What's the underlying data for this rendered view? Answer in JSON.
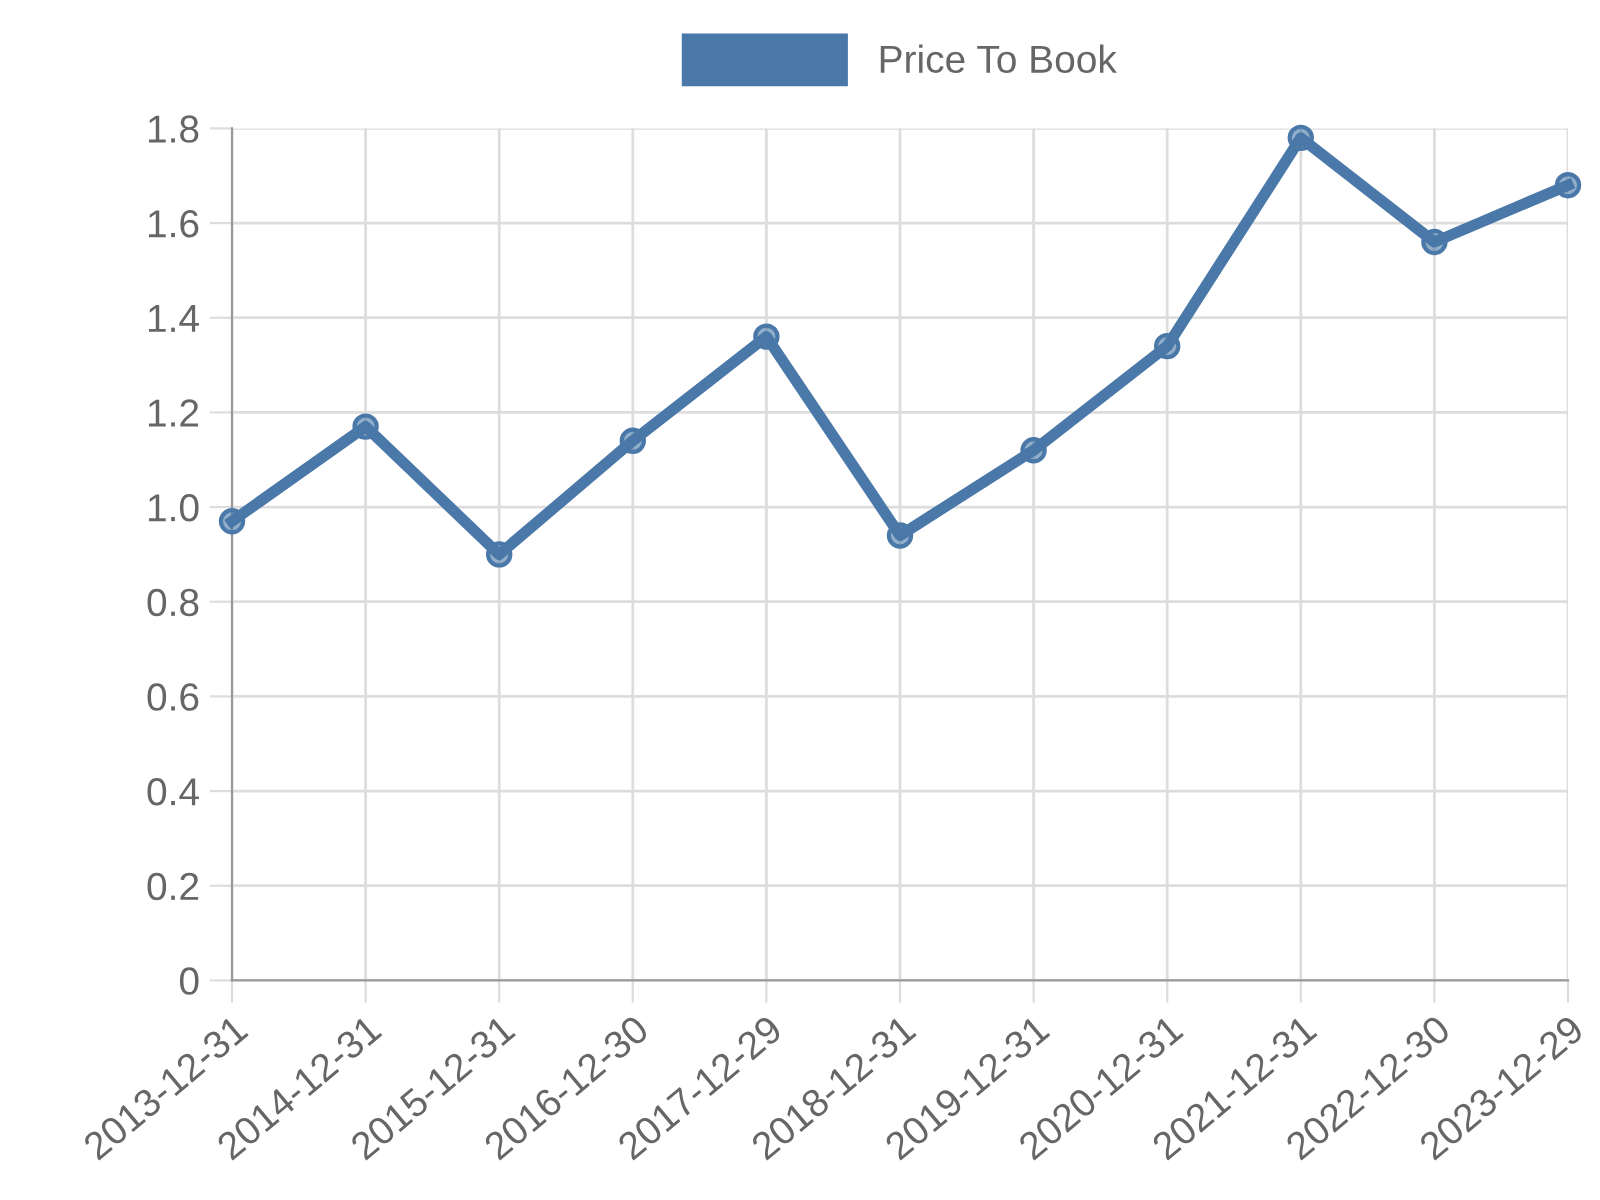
{
  "chart_data": {
    "type": "line",
    "categories": [
      "2013-12-31",
      "2014-12-31",
      "2015-12-31",
      "2016-12-30",
      "2017-12-29",
      "2018-12-31",
      "2019-12-31",
      "2020-12-31",
      "2021-12-31",
      "2022-12-30",
      "2023-12-29"
    ],
    "series": [
      {
        "name": "Price To Book",
        "color": "#4a78a8",
        "values": [
          0.97,
          1.17,
          0.9,
          1.14,
          1.36,
          0.94,
          1.12,
          1.34,
          1.78,
          1.56,
          1.68
        ]
      }
    ],
    "ylim": [
      0,
      1.8
    ],
    "yticks": [
      0,
      0.2,
      0.4,
      0.6,
      0.8,
      {
        "value": 1.0,
        "label": "1.0"
      },
      1.2,
      1.4,
      1.6,
      1.8
    ],
    "grid": true,
    "legend": "top",
    "marker": "circle",
    "line_style": "solid"
  }
}
